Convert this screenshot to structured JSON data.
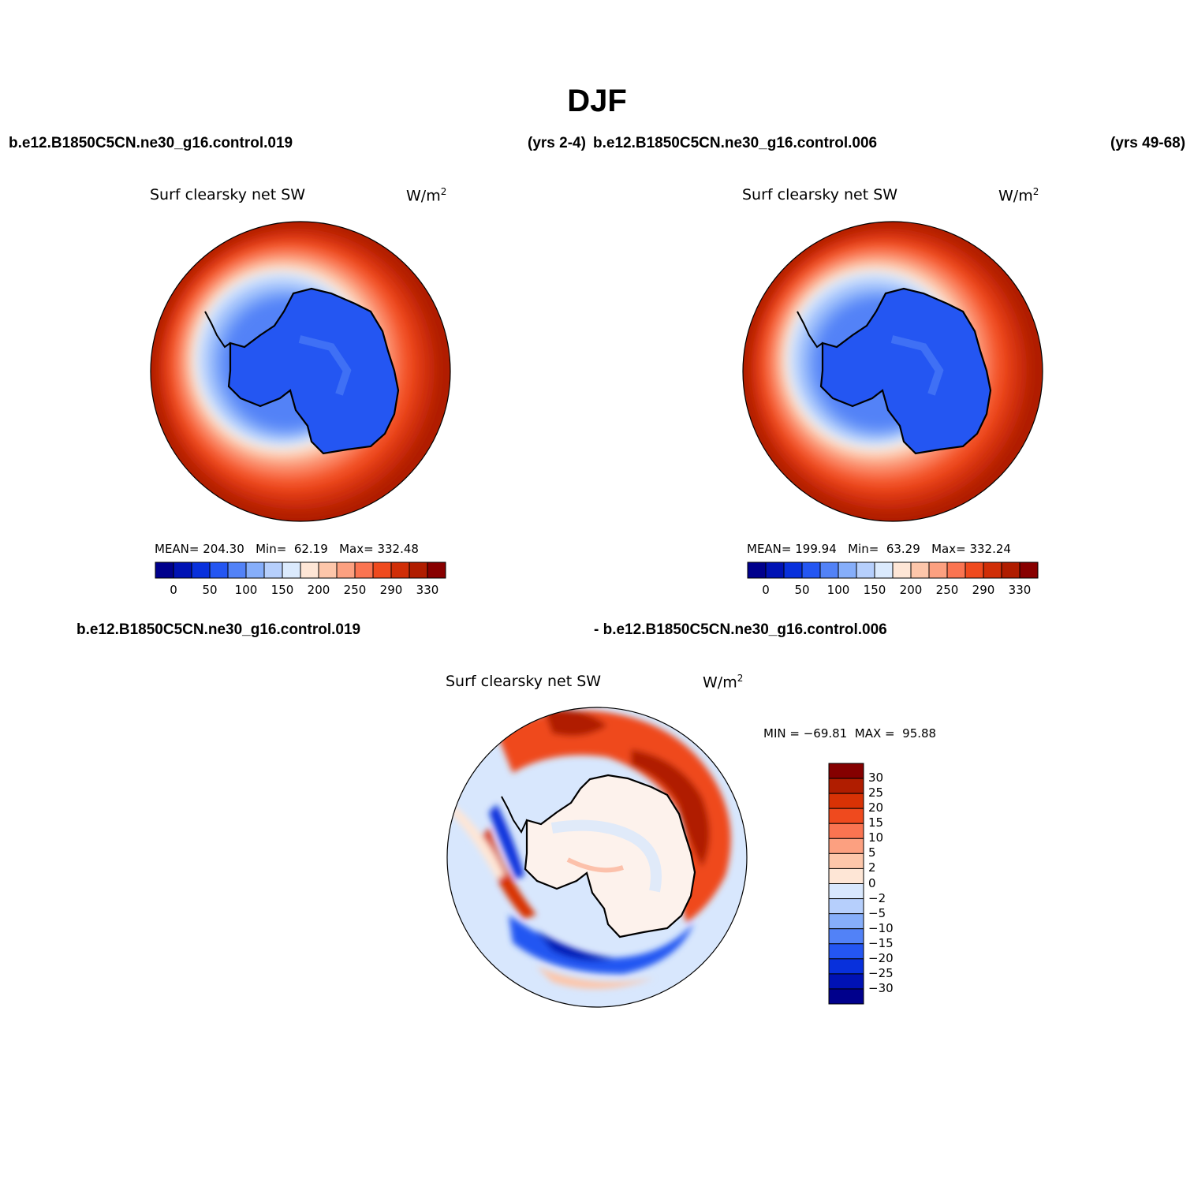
{
  "title": "DJF",
  "header": {
    "case_left": "b.e12.B1850C5CN.ne30_g16.control.019",
    "years_left": "(yrs 2-4)",
    "case_right": "b.e12.B1850C5CN.ne30_g16.control.006",
    "years_right": "(yrs 49-68)"
  },
  "diff_header": {
    "case_a": "b.e12.B1850C5CN.ne30_g16.control.019",
    "case_b": "- b.e12.B1850C5CN.ne30_g16.control.006"
  },
  "variable": "Surf clearsky net SW",
  "units_base": "W/m",
  "units_exp": "2",
  "panels": [
    {
      "mean_label": "MEAN=",
      "mean": "204.30",
      "min_label": "Min=",
      "min": "62.19",
      "max_label": "Max=",
      "max": "332.48"
    },
    {
      "mean_label": "MEAN=",
      "mean": "199.94",
      "min_label": "Min=",
      "min": "63.29",
      "max_label": "Max=",
      "max": "332.24"
    }
  ],
  "diff_panel": {
    "min_label": "MIN =",
    "min": "−69.81",
    "max_label": "MAX =",
    "max": "95.88"
  },
  "colorbar_abs": {
    "colors": [
      "#00008c",
      "#0012b4",
      "#0830dc",
      "#2456f2",
      "#5282f7",
      "#86aefa",
      "#b6cffc",
      "#dbeafd",
      "#fee6d6",
      "#fdc6aa",
      "#fca080",
      "#fa7451",
      "#ef4a1e",
      "#d02e07",
      "#b01d00",
      "#880000"
    ],
    "labels": [
      "0",
      "50",
      "100",
      "150",
      "200",
      "250",
      "290",
      "330"
    ]
  },
  "colorbar_diff": {
    "colors": [
      "#850000",
      "#b01d00",
      "#d83205",
      "#ef4a1e",
      "#fa7451",
      "#fca080",
      "#fdc6aa",
      "#fee6d6",
      "#d8e7fd",
      "#b6cffc",
      "#86aefa",
      "#5282f7",
      "#2456f2",
      "#0830dc",
      "#0012b4",
      "#00008c"
    ],
    "labels": [
      "30",
      "25",
      "20",
      "15",
      "10",
      "5",
      "2",
      "0",
      "−2",
      "−5",
      "−10",
      "−15",
      "−20",
      "−25",
      "−30"
    ]
  }
}
